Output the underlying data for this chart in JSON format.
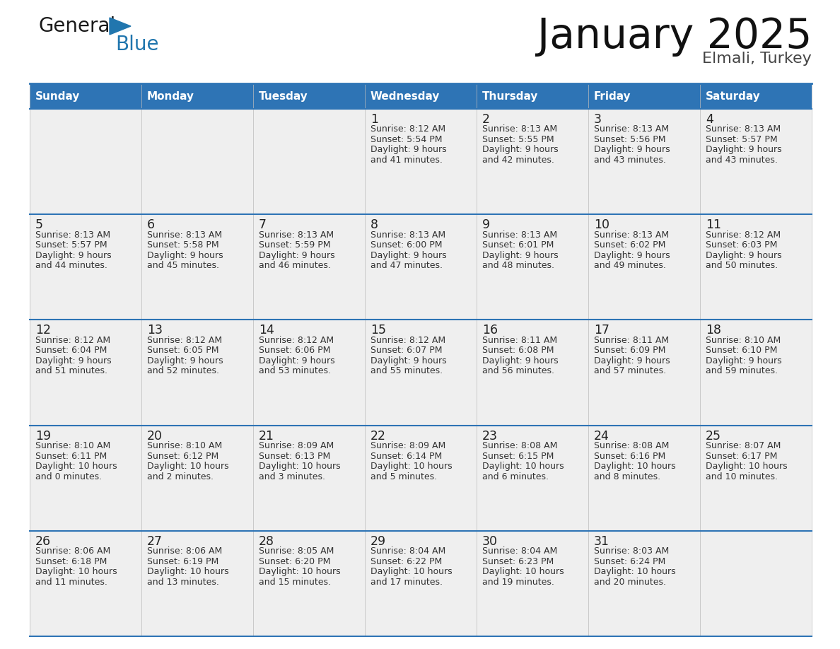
{
  "title": "January 2025",
  "subtitle": "Elmali, Turkey",
  "days_of_week": [
    "Sunday",
    "Monday",
    "Tuesday",
    "Wednesday",
    "Thursday",
    "Friday",
    "Saturday"
  ],
  "header_bg": "#2E74B5",
  "header_text": "#FFFFFF",
  "cell_bg": "#EFEFEF",
  "border_color": "#2E74B5",
  "day_number_color": "#222222",
  "info_text_color": "#333333",
  "title_color": "#111111",
  "subtitle_color": "#444444",
  "logo_black": "#1A1A1A",
  "logo_blue": "#2176AE",
  "calendar_data": [
    [
      {
        "day": "",
        "sunrise": "",
        "sunset": "",
        "daylight_h": "",
        "daylight_m": ""
      },
      {
        "day": "",
        "sunrise": "",
        "sunset": "",
        "daylight_h": "",
        "daylight_m": ""
      },
      {
        "day": "",
        "sunrise": "",
        "sunset": "",
        "daylight_h": "",
        "daylight_m": ""
      },
      {
        "day": "1",
        "sunrise": "8:12 AM",
        "sunset": "5:54 PM",
        "daylight_h": "9",
        "daylight_m": "41"
      },
      {
        "day": "2",
        "sunrise": "8:13 AM",
        "sunset": "5:55 PM",
        "daylight_h": "9",
        "daylight_m": "42"
      },
      {
        "day": "3",
        "sunrise": "8:13 AM",
        "sunset": "5:56 PM",
        "daylight_h": "9",
        "daylight_m": "43"
      },
      {
        "day": "4",
        "sunrise": "8:13 AM",
        "sunset": "5:57 PM",
        "daylight_h": "9",
        "daylight_m": "43"
      }
    ],
    [
      {
        "day": "5",
        "sunrise": "8:13 AM",
        "sunset": "5:57 PM",
        "daylight_h": "9",
        "daylight_m": "44"
      },
      {
        "day": "6",
        "sunrise": "8:13 AM",
        "sunset": "5:58 PM",
        "daylight_h": "9",
        "daylight_m": "45"
      },
      {
        "day": "7",
        "sunrise": "8:13 AM",
        "sunset": "5:59 PM",
        "daylight_h": "9",
        "daylight_m": "46"
      },
      {
        "day": "8",
        "sunrise": "8:13 AM",
        "sunset": "6:00 PM",
        "daylight_h": "9",
        "daylight_m": "47"
      },
      {
        "day": "9",
        "sunrise": "8:13 AM",
        "sunset": "6:01 PM",
        "daylight_h": "9",
        "daylight_m": "48"
      },
      {
        "day": "10",
        "sunrise": "8:13 AM",
        "sunset": "6:02 PM",
        "daylight_h": "9",
        "daylight_m": "49"
      },
      {
        "day": "11",
        "sunrise": "8:12 AM",
        "sunset": "6:03 PM",
        "daylight_h": "9",
        "daylight_m": "50"
      }
    ],
    [
      {
        "day": "12",
        "sunrise": "8:12 AM",
        "sunset": "6:04 PM",
        "daylight_h": "9",
        "daylight_m": "51"
      },
      {
        "day": "13",
        "sunrise": "8:12 AM",
        "sunset": "6:05 PM",
        "daylight_h": "9",
        "daylight_m": "52"
      },
      {
        "day": "14",
        "sunrise": "8:12 AM",
        "sunset": "6:06 PM",
        "daylight_h": "9",
        "daylight_m": "53"
      },
      {
        "day": "15",
        "sunrise": "8:12 AM",
        "sunset": "6:07 PM",
        "daylight_h": "9",
        "daylight_m": "55"
      },
      {
        "day": "16",
        "sunrise": "8:11 AM",
        "sunset": "6:08 PM",
        "daylight_h": "9",
        "daylight_m": "56"
      },
      {
        "day": "17",
        "sunrise": "8:11 AM",
        "sunset": "6:09 PM",
        "daylight_h": "9",
        "daylight_m": "57"
      },
      {
        "day": "18",
        "sunrise": "8:10 AM",
        "sunset": "6:10 PM",
        "daylight_h": "9",
        "daylight_m": "59"
      }
    ],
    [
      {
        "day": "19",
        "sunrise": "8:10 AM",
        "sunset": "6:11 PM",
        "daylight_h": "10",
        "daylight_m": "0"
      },
      {
        "day": "20",
        "sunrise": "8:10 AM",
        "sunset": "6:12 PM",
        "daylight_h": "10",
        "daylight_m": "2"
      },
      {
        "day": "21",
        "sunrise": "8:09 AM",
        "sunset": "6:13 PM",
        "daylight_h": "10",
        "daylight_m": "3"
      },
      {
        "day": "22",
        "sunrise": "8:09 AM",
        "sunset": "6:14 PM",
        "daylight_h": "10",
        "daylight_m": "5"
      },
      {
        "day": "23",
        "sunrise": "8:08 AM",
        "sunset": "6:15 PM",
        "daylight_h": "10",
        "daylight_m": "6"
      },
      {
        "day": "24",
        "sunrise": "8:08 AM",
        "sunset": "6:16 PM",
        "daylight_h": "10",
        "daylight_m": "8"
      },
      {
        "day": "25",
        "sunrise": "8:07 AM",
        "sunset": "6:17 PM",
        "daylight_h": "10",
        "daylight_m": "10"
      }
    ],
    [
      {
        "day": "26",
        "sunrise": "8:06 AM",
        "sunset": "6:18 PM",
        "daylight_h": "10",
        "daylight_m": "11"
      },
      {
        "day": "27",
        "sunrise": "8:06 AM",
        "sunset": "6:19 PM",
        "daylight_h": "10",
        "daylight_m": "13"
      },
      {
        "day": "28",
        "sunrise": "8:05 AM",
        "sunset": "6:20 PM",
        "daylight_h": "10",
        "daylight_m": "15"
      },
      {
        "day": "29",
        "sunrise": "8:04 AM",
        "sunset": "6:22 PM",
        "daylight_h": "10",
        "daylight_m": "17"
      },
      {
        "day": "30",
        "sunrise": "8:04 AM",
        "sunset": "6:23 PM",
        "daylight_h": "10",
        "daylight_m": "19"
      },
      {
        "day": "31",
        "sunrise": "8:03 AM",
        "sunset": "6:24 PM",
        "daylight_h": "10",
        "daylight_m": "20"
      },
      {
        "day": "",
        "sunrise": "",
        "sunset": "",
        "daylight_h": "",
        "daylight_m": ""
      }
    ]
  ]
}
